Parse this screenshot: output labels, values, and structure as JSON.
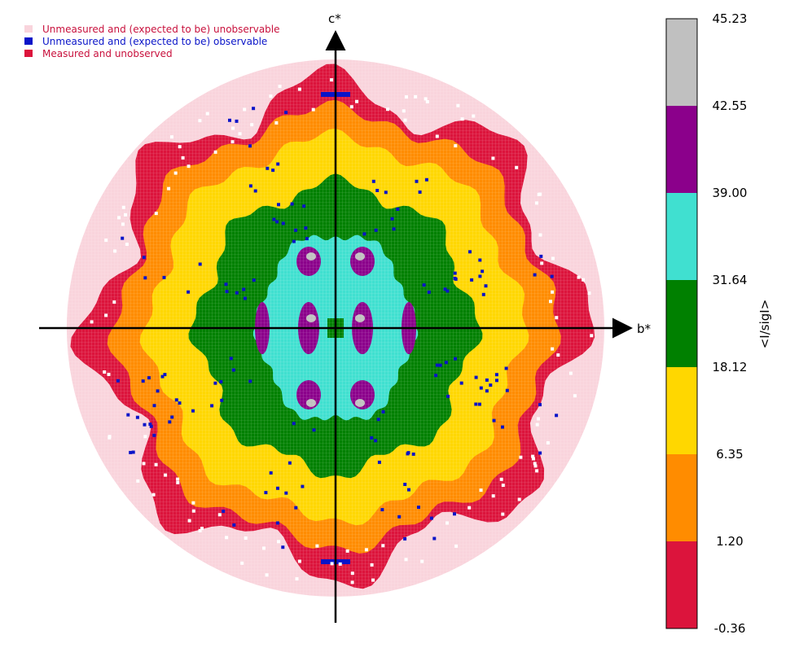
{
  "chart_data": {
    "type": "heatmap",
    "subtype": "reciprocal-space slice of <I/sigI>",
    "x_axis_label": "b*",
    "y_axis_label": "c*",
    "legend": [
      {
        "label": "Unmeasured and (expected to be) unobservable",
        "color": "#f9d4dc",
        "text_color": "#c8103c"
      },
      {
        "label": "Unmeasured and (expected to be) observable",
        "color": "#0a14c8",
        "text_color": "#0a14c8"
      },
      {
        "label": "Measured and unobserved",
        "color": "#dc143c",
        "text_color": "#c8103c"
      }
    ],
    "colorbar": {
      "label": "<I/sigI>",
      "ticks": [
        "45.23",
        "42.55",
        "39.00",
        "31.64",
        "18.12",
        "6.35",
        "1.20",
        "-0.36"
      ],
      "bins": [
        {
          "from": -0.36,
          "to": 1.2,
          "color": "#dc143c"
        },
        {
          "from": 1.2,
          "to": 6.35,
          "color": "#ff8c00"
        },
        {
          "from": 6.35,
          "to": 18.12,
          "color": "#ffd700"
        },
        {
          "from": 18.12,
          "to": 31.64,
          "color": "#008000"
        },
        {
          "from": 31.64,
          "to": 39.0,
          "color": "#40e0d0"
        },
        {
          "from": 39.0,
          "to": 42.55,
          "color": "#8b008b"
        },
        {
          "from": 42.55,
          "to": 45.23,
          "color": "#c0c0c0"
        }
      ]
    },
    "rings_relative_radius": {
      "unmeasured_unobservable_outer": 1.0,
      "measured_unobserved": 0.88,
      "bin_1.20_6.35": 0.8,
      "bin_6.35_18.12": 0.7,
      "bin_18.12_31.64": 0.53,
      "bin_31.64_39.00": 0.35
    }
  }
}
